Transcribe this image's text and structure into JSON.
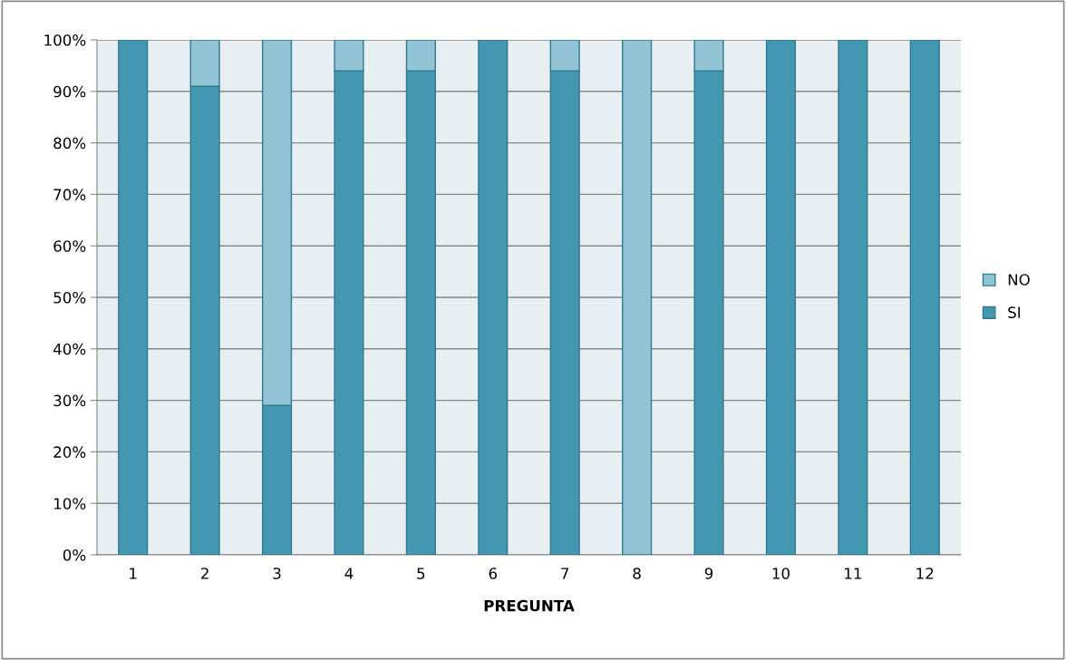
{
  "chart_data": {
    "type": "bar",
    "stacked": true,
    "xlabel": "PREGUNTA",
    "categories": [
      "1",
      "2",
      "3",
      "4",
      "5",
      "6",
      "7",
      "8",
      "9",
      "10",
      "11",
      "12"
    ],
    "series": [
      {
        "name": "SI",
        "color": "#4397b0",
        "values": [
          100,
          91,
          29,
          94,
          94,
          100,
          94,
          0,
          94,
          100,
          100,
          100
        ]
      },
      {
        "name": "NO",
        "color": "#93c4d6",
        "values": [
          0,
          9,
          71,
          6,
          6,
          0,
          6,
          100,
          6,
          0,
          0,
          0
        ]
      }
    ],
    "ylim": [
      0,
      100
    ],
    "yticks": [
      {
        "value": 0,
        "label": "0%"
      },
      {
        "value": 10,
        "label": "10%"
      },
      {
        "value": 20,
        "label": "20%"
      },
      {
        "value": 30,
        "label": "30%"
      },
      {
        "value": 40,
        "label": "40%"
      },
      {
        "value": 50,
        "label": "50%"
      },
      {
        "value": 60,
        "label": "60%"
      },
      {
        "value": 70,
        "label": "70%"
      },
      {
        "value": 80,
        "label": "80%"
      },
      {
        "value": 90,
        "label": "90%"
      },
      {
        "value": 100,
        "label": "100%"
      }
    ],
    "grid": "y",
    "legend": "right"
  }
}
